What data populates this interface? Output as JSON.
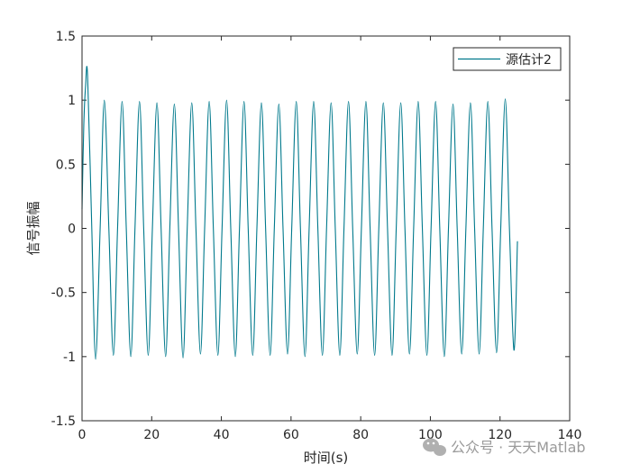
{
  "chart_data": {
    "type": "line",
    "xlabel": "时间(s)",
    "ylabel": "信号振幅",
    "xlim": [
      0,
      140
    ],
    "ylim": [
      -1.5,
      1.5
    ],
    "xticks": [
      0,
      20,
      40,
      60,
      80,
      100,
      120,
      140
    ],
    "yticks": [
      1.5,
      1,
      0.5,
      0,
      -0.5,
      -1,
      -1.5
    ],
    "xtick_labels": [
      "0",
      "20",
      "40",
      "60",
      "80",
      "100",
      "120",
      "140"
    ],
    "ytick_labels": [
      "1.5",
      "1",
      "0.5",
      "0",
      "-0.5",
      "-1",
      "-1.5"
    ],
    "grid": false,
    "legend_position": "top-right",
    "series": [
      {
        "name": "源估计2",
        "color": "#00798C",
        "x": [
          0,
          0.5,
          1.0,
          1.6,
          2.8,
          3.9,
          5.2,
          6.4,
          7.7,
          9.0,
          10.2,
          11.5,
          12.7,
          14.0,
          15.2,
          16.5,
          17.7,
          19.0,
          20.2,
          21.5,
          22.7,
          24.0,
          25.2,
          26.5,
          27.7,
          29.0,
          30.2,
          31.5,
          32.7,
          34.0,
          35.2,
          36.5,
          37.7,
          39.0,
          40.2,
          41.5,
          42.7,
          44.0,
          45.2,
          46.5,
          47.7,
          49.0,
          50.2,
          51.5,
          52.7,
          54.0,
          55.2,
          56.5,
          57.7,
          59.0,
          60.2,
          61.5,
          62.7,
          64.0,
          65.2,
          66.5,
          67.7,
          69.0,
          70.2,
          71.5,
          72.7,
          74.0,
          75.2,
          76.5,
          77.7,
          79.0,
          80.2,
          81.5,
          82.7,
          84.0,
          85.2,
          86.5,
          87.7,
          89.0,
          90.2,
          91.5,
          92.7,
          94.0,
          95.2,
          96.5,
          97.7,
          99.0,
          100.2,
          101.5,
          102.7,
          104.0,
          105.2,
          106.5,
          107.7,
          109.0,
          110.2,
          111.5,
          112.7,
          114.0,
          115.2,
          116.5,
          117.7,
          119.0,
          120.2,
          121.5,
          122.7,
          124.0,
          125.0
        ],
        "y": [
          0.15,
          0.8,
          1.1,
          1.19,
          0.0,
          -1.02,
          0.0,
          1.0,
          0.0,
          -0.99,
          0.0,
          0.99,
          0.0,
          -1.0,
          0.0,
          0.99,
          0.0,
          -0.99,
          0.0,
          0.98,
          0.0,
          -1.0,
          0.0,
          0.97,
          0.0,
          -1.01,
          0.0,
          0.98,
          0.0,
          -0.98,
          0.0,
          0.99,
          0.0,
          -0.99,
          0.0,
          1.0,
          0.0,
          -1.0,
          0.0,
          0.99,
          0.0,
          -0.99,
          0.0,
          0.98,
          0.0,
          -0.99,
          0.0,
          0.97,
          0.0,
          -0.98,
          0.0,
          0.99,
          0.0,
          -1.0,
          0.0,
          0.99,
          0.0,
          -0.99,
          0.0,
          0.98,
          0.0,
          -0.99,
          0.0,
          0.99,
          0.0,
          -0.98,
          0.0,
          0.99,
          0.0,
          -0.99,
          0.0,
          0.98,
          0.0,
          -0.99,
          0.0,
          0.98,
          0.0,
          -0.98,
          0.0,
          0.99,
          0.0,
          -0.99,
          0.0,
          0.99,
          0.0,
          -1.0,
          0.0,
          0.97,
          0.0,
          -0.98,
          0.0,
          0.98,
          0.0,
          -0.98,
          0.0,
          0.99,
          0.0,
          -0.97,
          0.0,
          1.01,
          0.0,
          -0.95,
          -0.1
        ]
      }
    ]
  },
  "watermark": {
    "text": "公众号 · 天天Matlab",
    "icon": "wechat-icon"
  },
  "colors": {
    "axis": "#262626",
    "series": "#00798C",
    "watermark": "#9a9a9a"
  }
}
